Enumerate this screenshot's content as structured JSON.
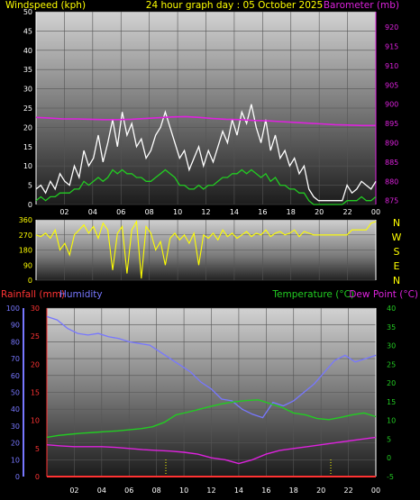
{
  "header": {
    "left": "Windspeed (kph)",
    "center": "24 hour graph day : 05 October 2025",
    "right": "Barometer (mb)"
  },
  "direction_letters": [
    "N",
    "W",
    "S",
    "E",
    "N"
  ],
  "lower_header": {
    "rainfall": "Rainfall (mm)",
    "humidity": "Humidity",
    "temperature": "Temperature (°C)",
    "dewpoint": "Dew Point (°C)"
  },
  "colors": {
    "windspeed": "#ffffff",
    "wind_avg": "#22cc22",
    "barometer": "#dd22dd",
    "direction": "#ffff00",
    "humidity": "#7777ff",
    "temperature": "#22cc22",
    "dewpoint": "#dd22dd",
    "rainfall": "#ff3333",
    "header_text": "#ffff00"
  },
  "chart_data": [
    {
      "type": "line",
      "name": "wind",
      "x_ticks": [
        "02",
        "04",
        "06",
        "08",
        "10",
        "12",
        "14",
        "16",
        "18",
        "20",
        "22",
        "00"
      ],
      "y_left_ticks": [
        "0",
        "5",
        "10",
        "15",
        "20",
        "25",
        "30",
        "35",
        "40",
        "45",
        "50"
      ],
      "y_right_ticks": [
        "875",
        "880",
        "885",
        "890",
        "895",
        "900",
        "905",
        "910",
        "915",
        "920"
      ],
      "ylim_left": [
        0,
        50
      ],
      "ylim_right": [
        874,
        924
      ],
      "series": [
        {
          "key": "gust",
          "values": [
            4,
            5,
            3,
            6,
            4,
            8,
            6,
            5,
            10,
            7,
            14,
            10,
            12,
            18,
            11,
            16,
            22,
            15,
            24,
            18,
            21,
            15,
            17,
            12,
            14,
            18,
            20,
            24,
            20,
            16,
            12,
            14,
            9,
            12,
            15,
            10,
            14,
            11,
            15,
            19,
            16,
            22,
            18,
            24,
            21,
            26,
            20,
            16,
            22,
            14,
            18,
            12,
            14,
            10,
            12,
            8,
            10,
            4,
            2,
            1,
            1,
            1,
            1,
            1,
            1,
            5,
            3,
            4,
            6,
            5,
            4,
            6
          ]
        },
        {
          "key": "avg",
          "values": [
            1,
            2,
            1,
            2,
            2,
            3,
            3,
            3,
            4,
            4,
            6,
            5,
            6,
            7,
            6,
            7,
            9,
            8,
            9,
            8,
            8,
            7,
            7,
            6,
            6,
            7,
            8,
            9,
            8,
            7,
            5,
            5,
            4,
            4,
            5,
            4,
            5,
            5,
            6,
            7,
            7,
            8,
            8,
            9,
            8,
            9,
            8,
            7,
            8,
            6,
            7,
            5,
            5,
            4,
            4,
            3,
            3,
            1,
            0,
            0,
            0,
            0,
            0,
            0,
            0,
            1,
            1,
            1,
            2,
            1,
            1,
            2
          ]
        },
        {
          "key": "barometer",
          "axis": "right",
          "values": [
            896.6,
            896.4,
            896.2,
            896.2,
            896.1,
            896.0,
            896.0,
            896.1,
            896.3,
            896.5,
            896.7,
            896.8,
            896.6,
            896.3,
            896.1,
            896.0,
            895.8,
            895.7,
            895.5,
            895.3,
            895.1,
            894.9,
            894.7,
            894.6,
            894.5,
            894.5
          ]
        }
      ]
    },
    {
      "type": "line",
      "name": "direction",
      "y_ticks": [
        "0",
        "90",
        "180",
        "270",
        "360"
      ],
      "ylim": [
        0,
        360
      ],
      "values": [
        270,
        260,
        280,
        250,
        300,
        180,
        220,
        150,
        270,
        300,
        330,
        280,
        320,
        250,
        340,
        300,
        60,
        280,
        320,
        40,
        300,
        350,
        10,
        320,
        280,
        180,
        230,
        90,
        250,
        280,
        240,
        270,
        220,
        280,
        90,
        270,
        250,
        280,
        240,
        300,
        260,
        280,
        250,
        270,
        290,
        260,
        280,
        270,
        300,
        260,
        280,
        290,
        270,
        280,
        300,
        260,
        290,
        280,
        270,
        270,
        270,
        270,
        270,
        270,
        270,
        270,
        300,
        300,
        300,
        300,
        340,
        350
      ]
    },
    {
      "type": "line",
      "name": "temperature-humidity",
      "x_ticks": [
        "02",
        "04",
        "06",
        "08",
        "10",
        "12",
        "14",
        "16",
        "18",
        "20",
        "22",
        "00"
      ],
      "y_humidity_ticks": [
        "0",
        "10",
        "20",
        "30",
        "40",
        "50",
        "60",
        "70",
        "80",
        "90",
        "100"
      ],
      "y_rain_ticks": [
        "0",
        "5",
        "10",
        "15",
        "20",
        "25",
        "30"
      ],
      "y_temp_ticks": [
        "-5",
        "0",
        "5",
        "10",
        "15",
        "20",
        "25",
        "30",
        "35",
        "40"
      ],
      "humidity_lim": [
        0,
        100
      ],
      "rain_lim": [
        0,
        30
      ],
      "temp_lim": [
        -5,
        40
      ],
      "series": [
        {
          "key": "humidity",
          "values": [
            95,
            93,
            88,
            85,
            84,
            85,
            83,
            82,
            80,
            79,
            78,
            74,
            70,
            66,
            62,
            56,
            52,
            46,
            45,
            40,
            37,
            35,
            44,
            42,
            45,
            50,
            55,
            62,
            69,
            72,
            68,
            70,
            72
          ]
        },
        {
          "key": "temperature",
          "values": [
            5.5,
            6.0,
            6.3,
            6.6,
            6.8,
            7.0,
            7.2,
            7.5,
            7.8,
            8.3,
            9.5,
            11.5,
            12.2,
            13.0,
            13.8,
            14.5,
            15.0,
            15.3,
            15.5,
            14.5,
            13.5,
            12.0,
            11.5,
            10.5,
            10.2,
            10.8,
            11.5,
            12.0,
            11.0
          ]
        },
        {
          "key": "dewpoint",
          "values": [
            3.5,
            3.2,
            3.0,
            3.0,
            3.0,
            2.8,
            2.5,
            2.2,
            2.0,
            1.8,
            1.5,
            1.0,
            0.0,
            -0.5,
            -1.5,
            -0.5,
            1.0,
            2.0,
            2.5,
            3.0,
            3.5,
            4.0,
            4.5,
            5.0,
            5.5
          ]
        },
        {
          "key": "rainfall",
          "values": [
            0,
            0,
            0,
            0,
            0,
            0,
            0,
            0,
            0,
            0,
            0,
            0,
            0
          ]
        }
      ]
    }
  ]
}
